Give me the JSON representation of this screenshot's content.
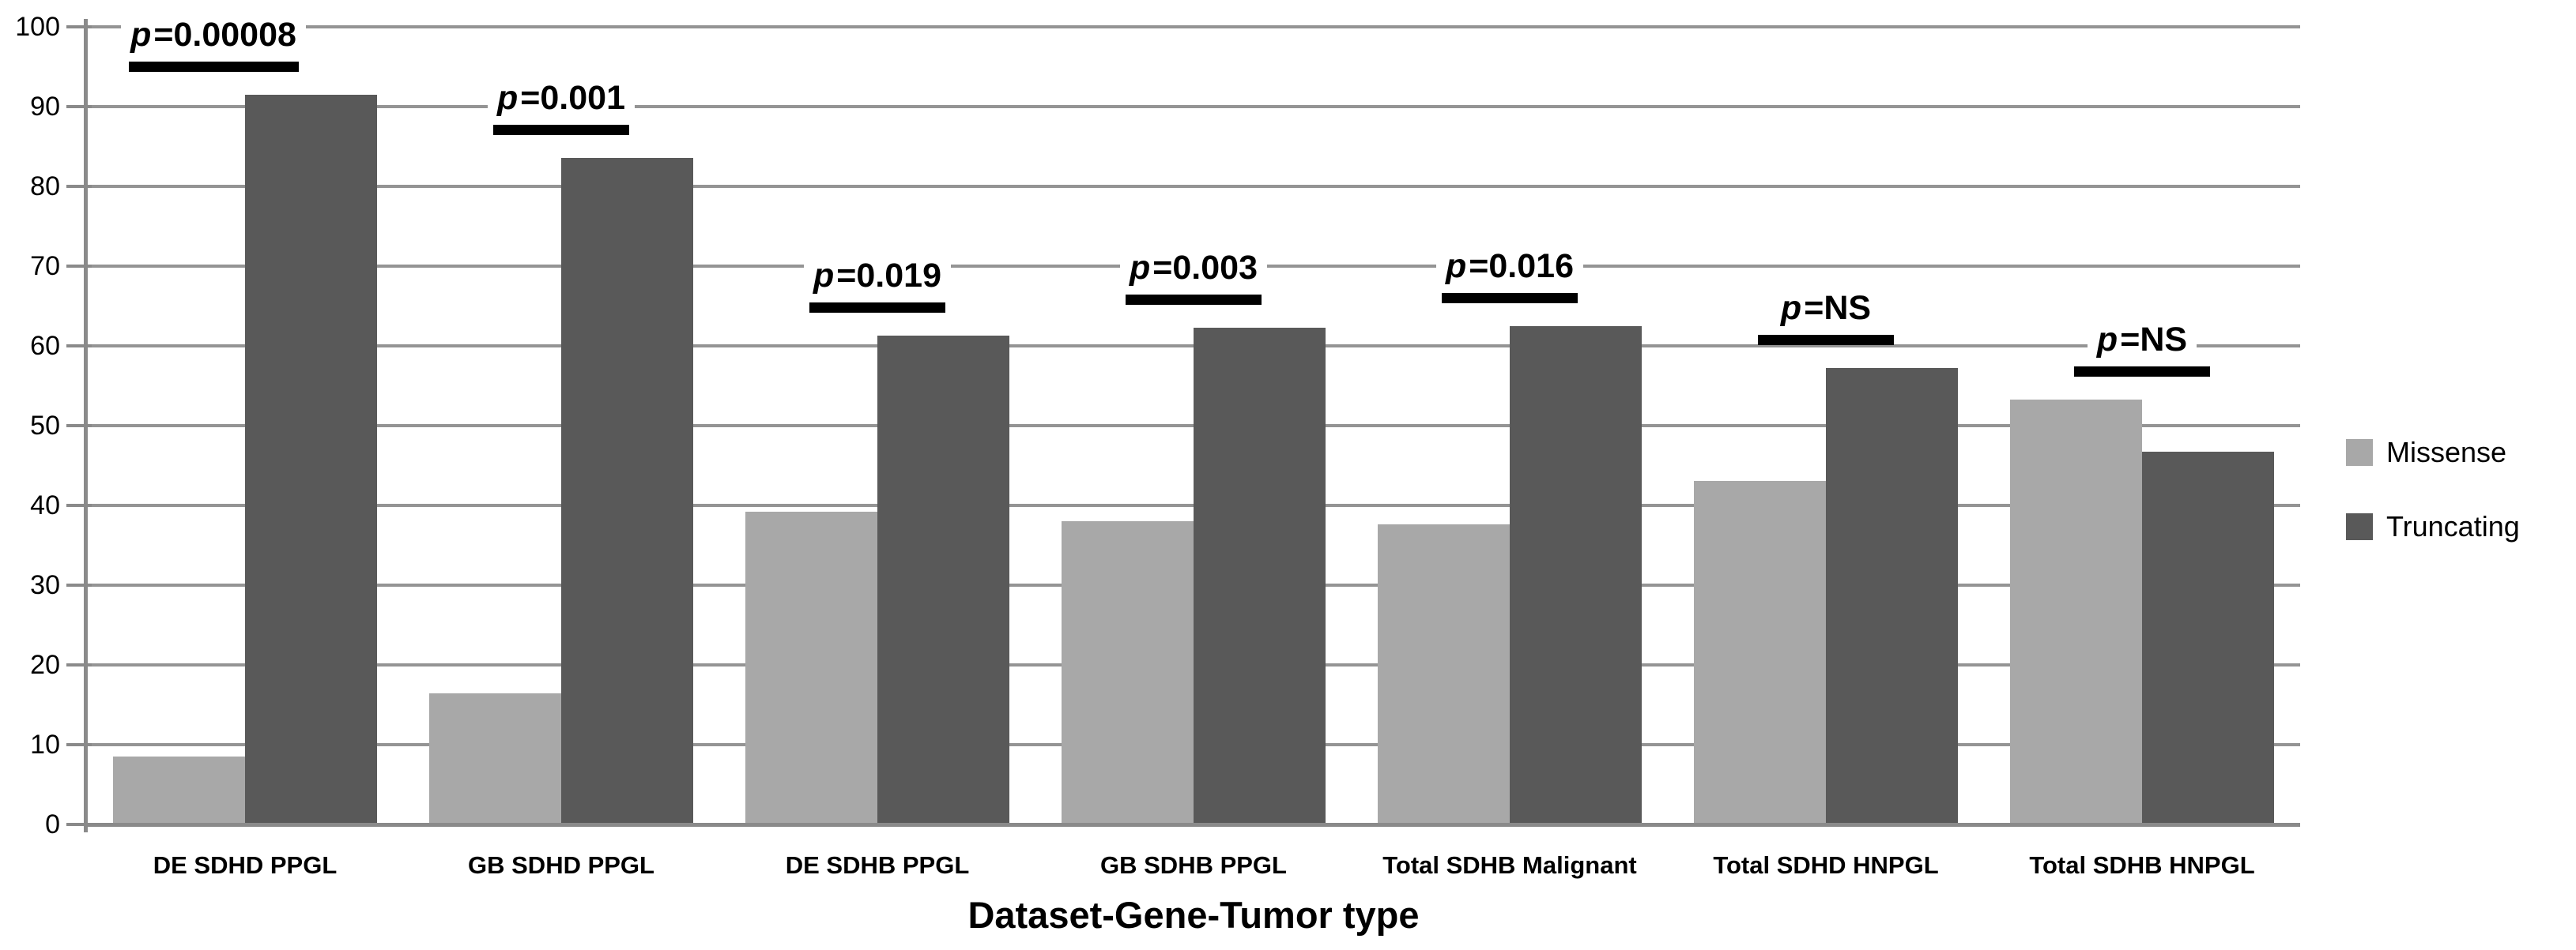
{
  "chart_data": {
    "type": "bar",
    "orientation": "vertical",
    "title": "",
    "xlabel": "Dataset-Gene-Tumor type",
    "ylabel": "",
    "ylim": [
      0,
      100
    ],
    "yticks": [
      0,
      10,
      20,
      30,
      40,
      50,
      60,
      70,
      80,
      90,
      100
    ],
    "grid": "horizontal",
    "legend_position": "right",
    "categories": [
      "DE SDHD PPGL",
      "GB SDHD PPGL",
      "DE SDHB PPGL",
      "GB SDHB PPGL",
      "Total SDHB Malignant",
      "Total SDHD HNPGL",
      "Total SDHB HNPGL"
    ],
    "series": [
      {
        "name": "Missense",
        "color": "#a8a8a8",
        "values": [
          8.5,
          16.4,
          39.2,
          38.0,
          37.6,
          43.1,
          53.3
        ]
      },
      {
        "name": "Truncating",
        "color": "#595959",
        "values": [
          91.5,
          83.6,
          61.3,
          62.3,
          62.5,
          57.2,
          46.7
        ]
      }
    ],
    "annotations": [
      "p=0.00008",
      "p=0.001",
      "p=0.019",
      "p=0.003",
      "p=0.016",
      "p=NS",
      "p=NS"
    ],
    "colors": {
      "gridline": "#949494",
      "axis": "#8a8a8a",
      "annotation": "#000000",
      "text": "#000000",
      "background": "#ffffff"
    }
  }
}
